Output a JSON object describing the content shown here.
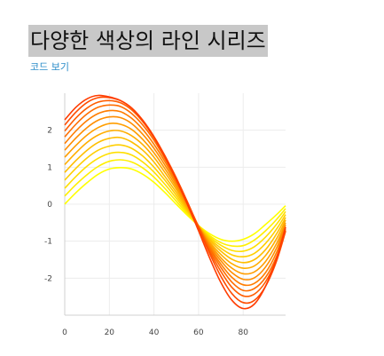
{
  "page": {
    "title": "다양한 색상의 라인 시리즈",
    "code_link": "코드 보기"
  },
  "chart_data": {
    "type": "line",
    "title": "",
    "xlabel": "",
    "ylabel": "",
    "xlim": [
      0,
      99
    ],
    "ylim": [
      -3,
      3
    ],
    "x_ticks": [
      0,
      20,
      40,
      60,
      80
    ],
    "y_ticks": [
      2,
      1,
      0,
      -1,
      -2
    ],
    "grid": true,
    "legend": "none",
    "x": [
      0,
      5,
      10,
      15,
      20,
      25,
      30,
      35,
      40,
      45,
      50,
      55,
      60,
      65,
      70,
      75,
      80,
      85,
      90,
      95,
      99
    ],
    "series_color_start": "#ffff00",
    "series_color_end": "#ff3c00",
    "series": [
      {
        "values": [
          0.0,
          0.31,
          0.58,
          0.81,
          0.95,
          0.99,
          0.95,
          0.81,
          0.59,
          0.31,
          0.0,
          -0.3,
          -0.58,
          -0.8,
          -0.95,
          -1.0,
          -0.95,
          -0.8,
          -0.55,
          -0.28,
          -0.04
        ]
      },
      {
        "values": [
          0.22,
          0.53,
          0.8,
          1.02,
          1.16,
          1.2,
          1.14,
          0.98,
          0.73,
          0.42,
          0.08,
          -0.26,
          -0.58,
          -0.85,
          -1.04,
          -1.13,
          -1.12,
          -0.97,
          -0.72,
          -0.41,
          -0.12
        ]
      },
      {
        "values": [
          0.43,
          0.75,
          1.03,
          1.24,
          1.37,
          1.4,
          1.33,
          1.14,
          0.87,
          0.53,
          0.16,
          -0.22,
          -0.58,
          -0.89,
          -1.11,
          -1.25,
          -1.27,
          -1.15,
          -0.89,
          -0.54,
          -0.2
        ]
      },
      {
        "values": [
          0.65,
          0.97,
          1.25,
          1.46,
          1.57,
          1.6,
          1.51,
          1.3,
          1.0,
          0.64,
          0.24,
          -0.18,
          -0.58,
          -0.93,
          -1.19,
          -1.37,
          -1.42,
          -1.33,
          -1.06,
          -0.67,
          -0.28
        ]
      },
      {
        "values": [
          0.86,
          1.18,
          1.46,
          1.67,
          1.78,
          1.8,
          1.68,
          1.46,
          1.14,
          0.74,
          0.32,
          -0.14,
          -0.59,
          -0.97,
          -1.27,
          -1.49,
          -1.58,
          -1.5,
          -1.23,
          -0.8,
          -0.36
        ]
      },
      {
        "values": [
          1.07,
          1.39,
          1.67,
          1.87,
          1.98,
          1.98,
          1.85,
          1.61,
          1.27,
          0.85,
          0.4,
          -0.1,
          -0.6,
          -1.02,
          -1.36,
          -1.61,
          -1.73,
          -1.67,
          -1.39,
          -0.93,
          -0.43
        ]
      },
      {
        "values": [
          1.27,
          1.59,
          1.87,
          2.07,
          2.18,
          2.16,
          2.02,
          1.75,
          1.39,
          0.95,
          0.47,
          -0.06,
          -0.6,
          -1.06,
          -1.45,
          -1.73,
          -1.88,
          -1.83,
          -1.55,
          -1.06,
          -0.5
        ]
      },
      {
        "values": [
          1.46,
          1.79,
          2.07,
          2.27,
          2.36,
          2.34,
          2.18,
          1.89,
          1.51,
          1.05,
          0.54,
          -0.02,
          -0.6,
          -1.11,
          -1.53,
          -1.85,
          -2.03,
          -1.99,
          -1.7,
          -1.18,
          -0.56
        ]
      },
      {
        "values": [
          1.64,
          1.98,
          2.26,
          2.45,
          2.53,
          2.5,
          2.32,
          2.02,
          1.62,
          1.14,
          0.6,
          0.01,
          -0.6,
          -1.16,
          -1.62,
          -1.98,
          -2.18,
          -2.14,
          -1.85,
          -1.3,
          -0.62
        ]
      },
      {
        "values": [
          1.82,
          2.16,
          2.44,
          2.62,
          2.68,
          2.64,
          2.45,
          2.14,
          1.73,
          1.22,
          0.66,
          0.04,
          -0.6,
          -1.21,
          -1.71,
          -2.11,
          -2.33,
          -2.28,
          -1.98,
          -1.41,
          -0.68
        ]
      },
      {
        "values": [
          1.98,
          2.33,
          2.6,
          2.76,
          2.8,
          2.74,
          2.55,
          2.23,
          1.8,
          1.28,
          0.7,
          0.06,
          -0.62,
          -1.27,
          -1.82,
          -2.25,
          -2.48,
          -2.43,
          -2.1,
          -1.48,
          -0.72
        ]
      },
      {
        "values": [
          2.14,
          2.49,
          2.75,
          2.88,
          2.88,
          2.8,
          2.6,
          2.27,
          1.83,
          1.3,
          0.71,
          0.06,
          -0.64,
          -1.34,
          -1.95,
          -2.42,
          -2.66,
          -2.6,
          -2.22,
          -1.53,
          -0.73
        ]
      },
      {
        "values": [
          2.28,
          2.62,
          2.85,
          2.94,
          2.9,
          2.8,
          2.6,
          2.26,
          1.81,
          1.27,
          0.66,
          0.0,
          -0.72,
          -1.46,
          -2.12,
          -2.6,
          -2.82,
          -2.7,
          -2.22,
          -1.46,
          -0.62
        ]
      }
    ]
  }
}
